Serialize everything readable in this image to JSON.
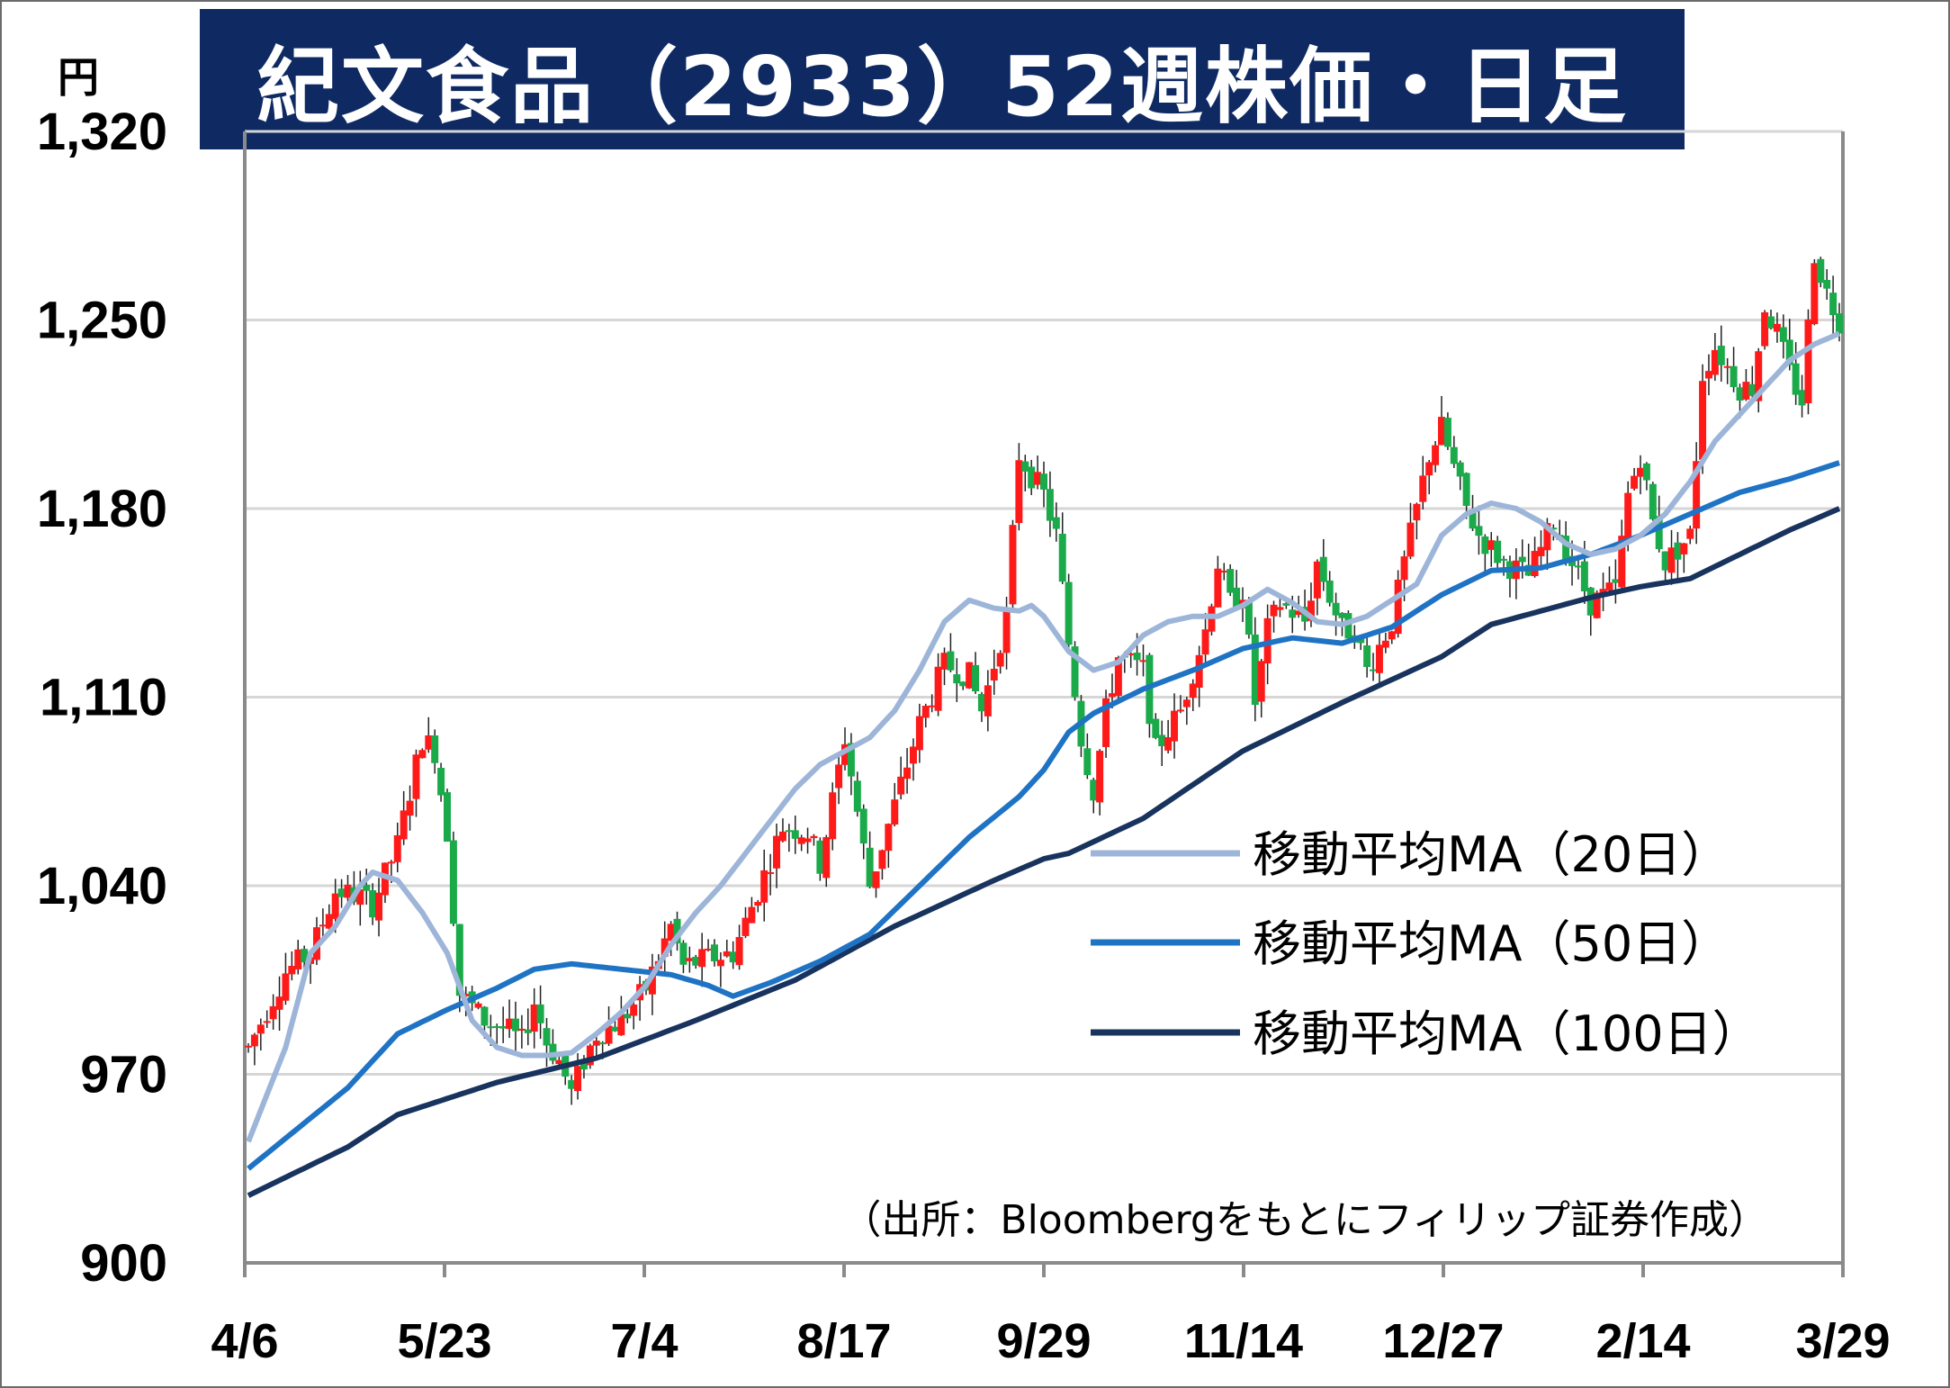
{
  "title": "紀文食品（2933）52週株価・日足",
  "unit_label": "円",
  "source_note": "（出所：Bloombergをもとにフィリップ証券作成）",
  "colors": {
    "title_bg": "#0f2a63",
    "up_candle": "#ff1a1a",
    "down_candle": "#1aaa4a",
    "ma20": "#9db5d8",
    "ma50": "#1f73c4",
    "ma100": "#17335e",
    "grid": "#d6d6d6"
  },
  "chart_data": {
    "type": "candlestick",
    "ylim": [
      900,
      1320
    ],
    "yticks": [
      {
        "value": 900,
        "label": "900"
      },
      {
        "value": 970,
        "label": "970"
      },
      {
        "value": 1040,
        "label": "1,040"
      },
      {
        "value": 1110,
        "label": "1,110"
      },
      {
        "value": 1180,
        "label": "1,180"
      },
      {
        "value": 1250,
        "label": "1,250"
      },
      {
        "value": 1320,
        "label": "1,320"
      }
    ],
    "xticks": [
      "4/6",
      "5/23",
      "7/4",
      "8/17",
      "9/29",
      "11/14",
      "12/27",
      "2/14",
      "3/29"
    ],
    "grid": true,
    "legend_position": "right-middle",
    "legend": [
      {
        "key": "ma20",
        "label": "移動平均MA（20日）"
      },
      {
        "key": "ma50",
        "label": "移動平均MA（50日）"
      },
      {
        "key": "ma100",
        "label": "移動平均MA（100日）"
      }
    ],
    "price_path": [
      [
        0,
        980
      ],
      [
        6,
        1008
      ],
      [
        10,
        1015
      ],
      [
        14,
        1038
      ],
      [
        18,
        1036
      ],
      [
        20,
        1033
      ],
      [
        24,
        1055
      ],
      [
        28,
        1095
      ],
      [
        30,
        1090
      ],
      [
        32,
        1060
      ],
      [
        34,
        1000
      ],
      [
        38,
        990
      ],
      [
        42,
        986
      ],
      [
        44,
        982
      ],
      [
        46,
        997
      ],
      [
        48,
        982
      ],
      [
        50,
        975
      ],
      [
        52,
        963
      ],
      [
        54,
        975
      ],
      [
        56,
        985
      ],
      [
        60,
        990
      ],
      [
        64,
        1002
      ],
      [
        68,
        1025
      ],
      [
        70,
        1010
      ],
      [
        74,
        1013
      ],
      [
        78,
        1015
      ],
      [
        82,
        1038
      ],
      [
        86,
        1062
      ],
      [
        90,
        1060
      ],
      [
        92,
        1048
      ],
      [
        96,
        1095
      ],
      [
        100,
        1040
      ],
      [
        104,
        1070
      ],
      [
        108,
        1100
      ],
      [
        112,
        1122
      ],
      [
        116,
        1118
      ],
      [
        118,
        1105
      ],
      [
        122,
        1140
      ],
      [
        124,
        1200
      ],
      [
        128,
        1185
      ],
      [
        130,
        1170
      ],
      [
        132,
        1130
      ],
      [
        134,
        1095
      ],
      [
        136,
        1075
      ],
      [
        138,
        1105
      ],
      [
        140,
        1125
      ],
      [
        144,
        1120
      ],
      [
        146,
        1090
      ],
      [
        148,
        1098
      ],
      [
        150,
        1105
      ],
      [
        154,
        1135
      ],
      [
        156,
        1160
      ],
      [
        158,
        1145
      ],
      [
        160,
        1150
      ],
      [
        162,
        1108
      ],
      [
        164,
        1135
      ],
      [
        166,
        1145
      ],
      [
        170,
        1138
      ],
      [
        172,
        1160
      ],
      [
        176,
        1135
      ],
      [
        178,
        1135
      ],
      [
        180,
        1120
      ],
      [
        184,
        1138
      ],
      [
        186,
        1160
      ],
      [
        190,
        1200
      ],
      [
        192,
        1210
      ],
      [
        196,
        1180
      ],
      [
        198,
        1170
      ],
      [
        202,
        1160
      ],
      [
        206,
        1155
      ],
      [
        210,
        1175
      ],
      [
        214,
        1155
      ],
      [
        216,
        1145
      ],
      [
        220,
        1150
      ],
      [
        222,
        1185
      ],
      [
        224,
        1200
      ],
      [
        226,
        1175
      ],
      [
        228,
        1160
      ],
      [
        232,
        1170
      ],
      [
        234,
        1230
      ],
      [
        236,
        1240
      ],
      [
        240,
        1225
      ],
      [
        242,
        1225
      ],
      [
        244,
        1255
      ],
      [
        246,
        1245
      ],
      [
        248,
        1230
      ],
      [
        250,
        1220
      ],
      [
        252,
        1275
      ],
      [
        254,
        1260
      ],
      [
        256,
        1250
      ]
    ],
    "ma20_path": [
      [
        0,
        945
      ],
      [
        6,
        980
      ],
      [
        10,
        1015
      ],
      [
        14,
        1025
      ],
      [
        18,
        1040
      ],
      [
        20,
        1045
      ],
      [
        24,
        1042
      ],
      [
        28,
        1030
      ],
      [
        32,
        1015
      ],
      [
        36,
        990
      ],
      [
        40,
        980
      ],
      [
        44,
        977
      ],
      [
        48,
        977
      ],
      [
        52,
        978
      ],
      [
        56,
        985
      ],
      [
        60,
        993
      ],
      [
        64,
        1003
      ],
      [
        68,
        1018
      ],
      [
        72,
        1030
      ],
      [
        76,
        1040
      ],
      [
        80,
        1052
      ],
      [
        84,
        1064
      ],
      [
        88,
        1076
      ],
      [
        92,
        1085
      ],
      [
        96,
        1090
      ],
      [
        100,
        1095
      ],
      [
        104,
        1105
      ],
      [
        108,
        1120
      ],
      [
        112,
        1138
      ],
      [
        116,
        1146
      ],
      [
        120,
        1143
      ],
      [
        124,
        1142
      ],
      [
        126,
        1144
      ],
      [
        128,
        1140
      ],
      [
        132,
        1127
      ],
      [
        136,
        1120
      ],
      [
        140,
        1123
      ],
      [
        144,
        1133
      ],
      [
        148,
        1138
      ],
      [
        152,
        1140
      ],
      [
        156,
        1140
      ],
      [
        160,
        1144
      ],
      [
        164,
        1150
      ],
      [
        168,
        1145
      ],
      [
        172,
        1138
      ],
      [
        176,
        1137
      ],
      [
        180,
        1140
      ],
      [
        184,
        1146
      ],
      [
        188,
        1152
      ],
      [
        192,
        1170
      ],
      [
        196,
        1178
      ],
      [
        200,
        1182
      ],
      [
        204,
        1180
      ],
      [
        208,
        1175
      ],
      [
        212,
        1167
      ],
      [
        216,
        1163
      ],
      [
        220,
        1165
      ],
      [
        224,
        1170
      ],
      [
        228,
        1178
      ],
      [
        232,
        1190
      ],
      [
        236,
        1205
      ],
      [
        240,
        1215
      ],
      [
        244,
        1225
      ],
      [
        248,
        1235
      ],
      [
        252,
        1241
      ],
      [
        256,
        1245
      ]
    ],
    "ma50_path": [
      [
        0,
        935
      ],
      [
        8,
        950
      ],
      [
        16,
        965
      ],
      [
        24,
        985
      ],
      [
        32,
        994
      ],
      [
        40,
        1002
      ],
      [
        46,
        1009
      ],
      [
        52,
        1011
      ],
      [
        60,
        1009
      ],
      [
        68,
        1007
      ],
      [
        74,
        1003
      ],
      [
        78,
        999
      ],
      [
        84,
        1004
      ],
      [
        92,
        1012
      ],
      [
        100,
        1022
      ],
      [
        108,
        1040
      ],
      [
        116,
        1058
      ],
      [
        124,
        1073
      ],
      [
        128,
        1083
      ],
      [
        132,
        1097
      ],
      [
        136,
        1104
      ],
      [
        144,
        1113
      ],
      [
        152,
        1120
      ],
      [
        160,
        1128
      ],
      [
        168,
        1132
      ],
      [
        176,
        1130
      ],
      [
        184,
        1136
      ],
      [
        192,
        1148
      ],
      [
        200,
        1157
      ],
      [
        208,
        1158
      ],
      [
        216,
        1163
      ],
      [
        224,
        1170
      ],
      [
        232,
        1178
      ],
      [
        240,
        1186
      ],
      [
        248,
        1191
      ],
      [
        256,
        1197
      ]
    ],
    "ma100_path": [
      [
        0,
        925
      ],
      [
        16,
        943
      ],
      [
        24,
        955
      ],
      [
        40,
        967
      ],
      [
        56,
        976
      ],
      [
        72,
        990
      ],
      [
        88,
        1005
      ],
      [
        104,
        1025
      ],
      [
        120,
        1042
      ],
      [
        128,
        1050
      ],
      [
        132,
        1052
      ],
      [
        144,
        1065
      ],
      [
        160,
        1090
      ],
      [
        176,
        1108
      ],
      [
        192,
        1125
      ],
      [
        200,
        1137
      ],
      [
        216,
        1147
      ],
      [
        224,
        1151
      ],
      [
        232,
        1154
      ],
      [
        240,
        1163
      ],
      [
        248,
        1172
      ],
      [
        256,
        1180
      ]
    ]
  }
}
